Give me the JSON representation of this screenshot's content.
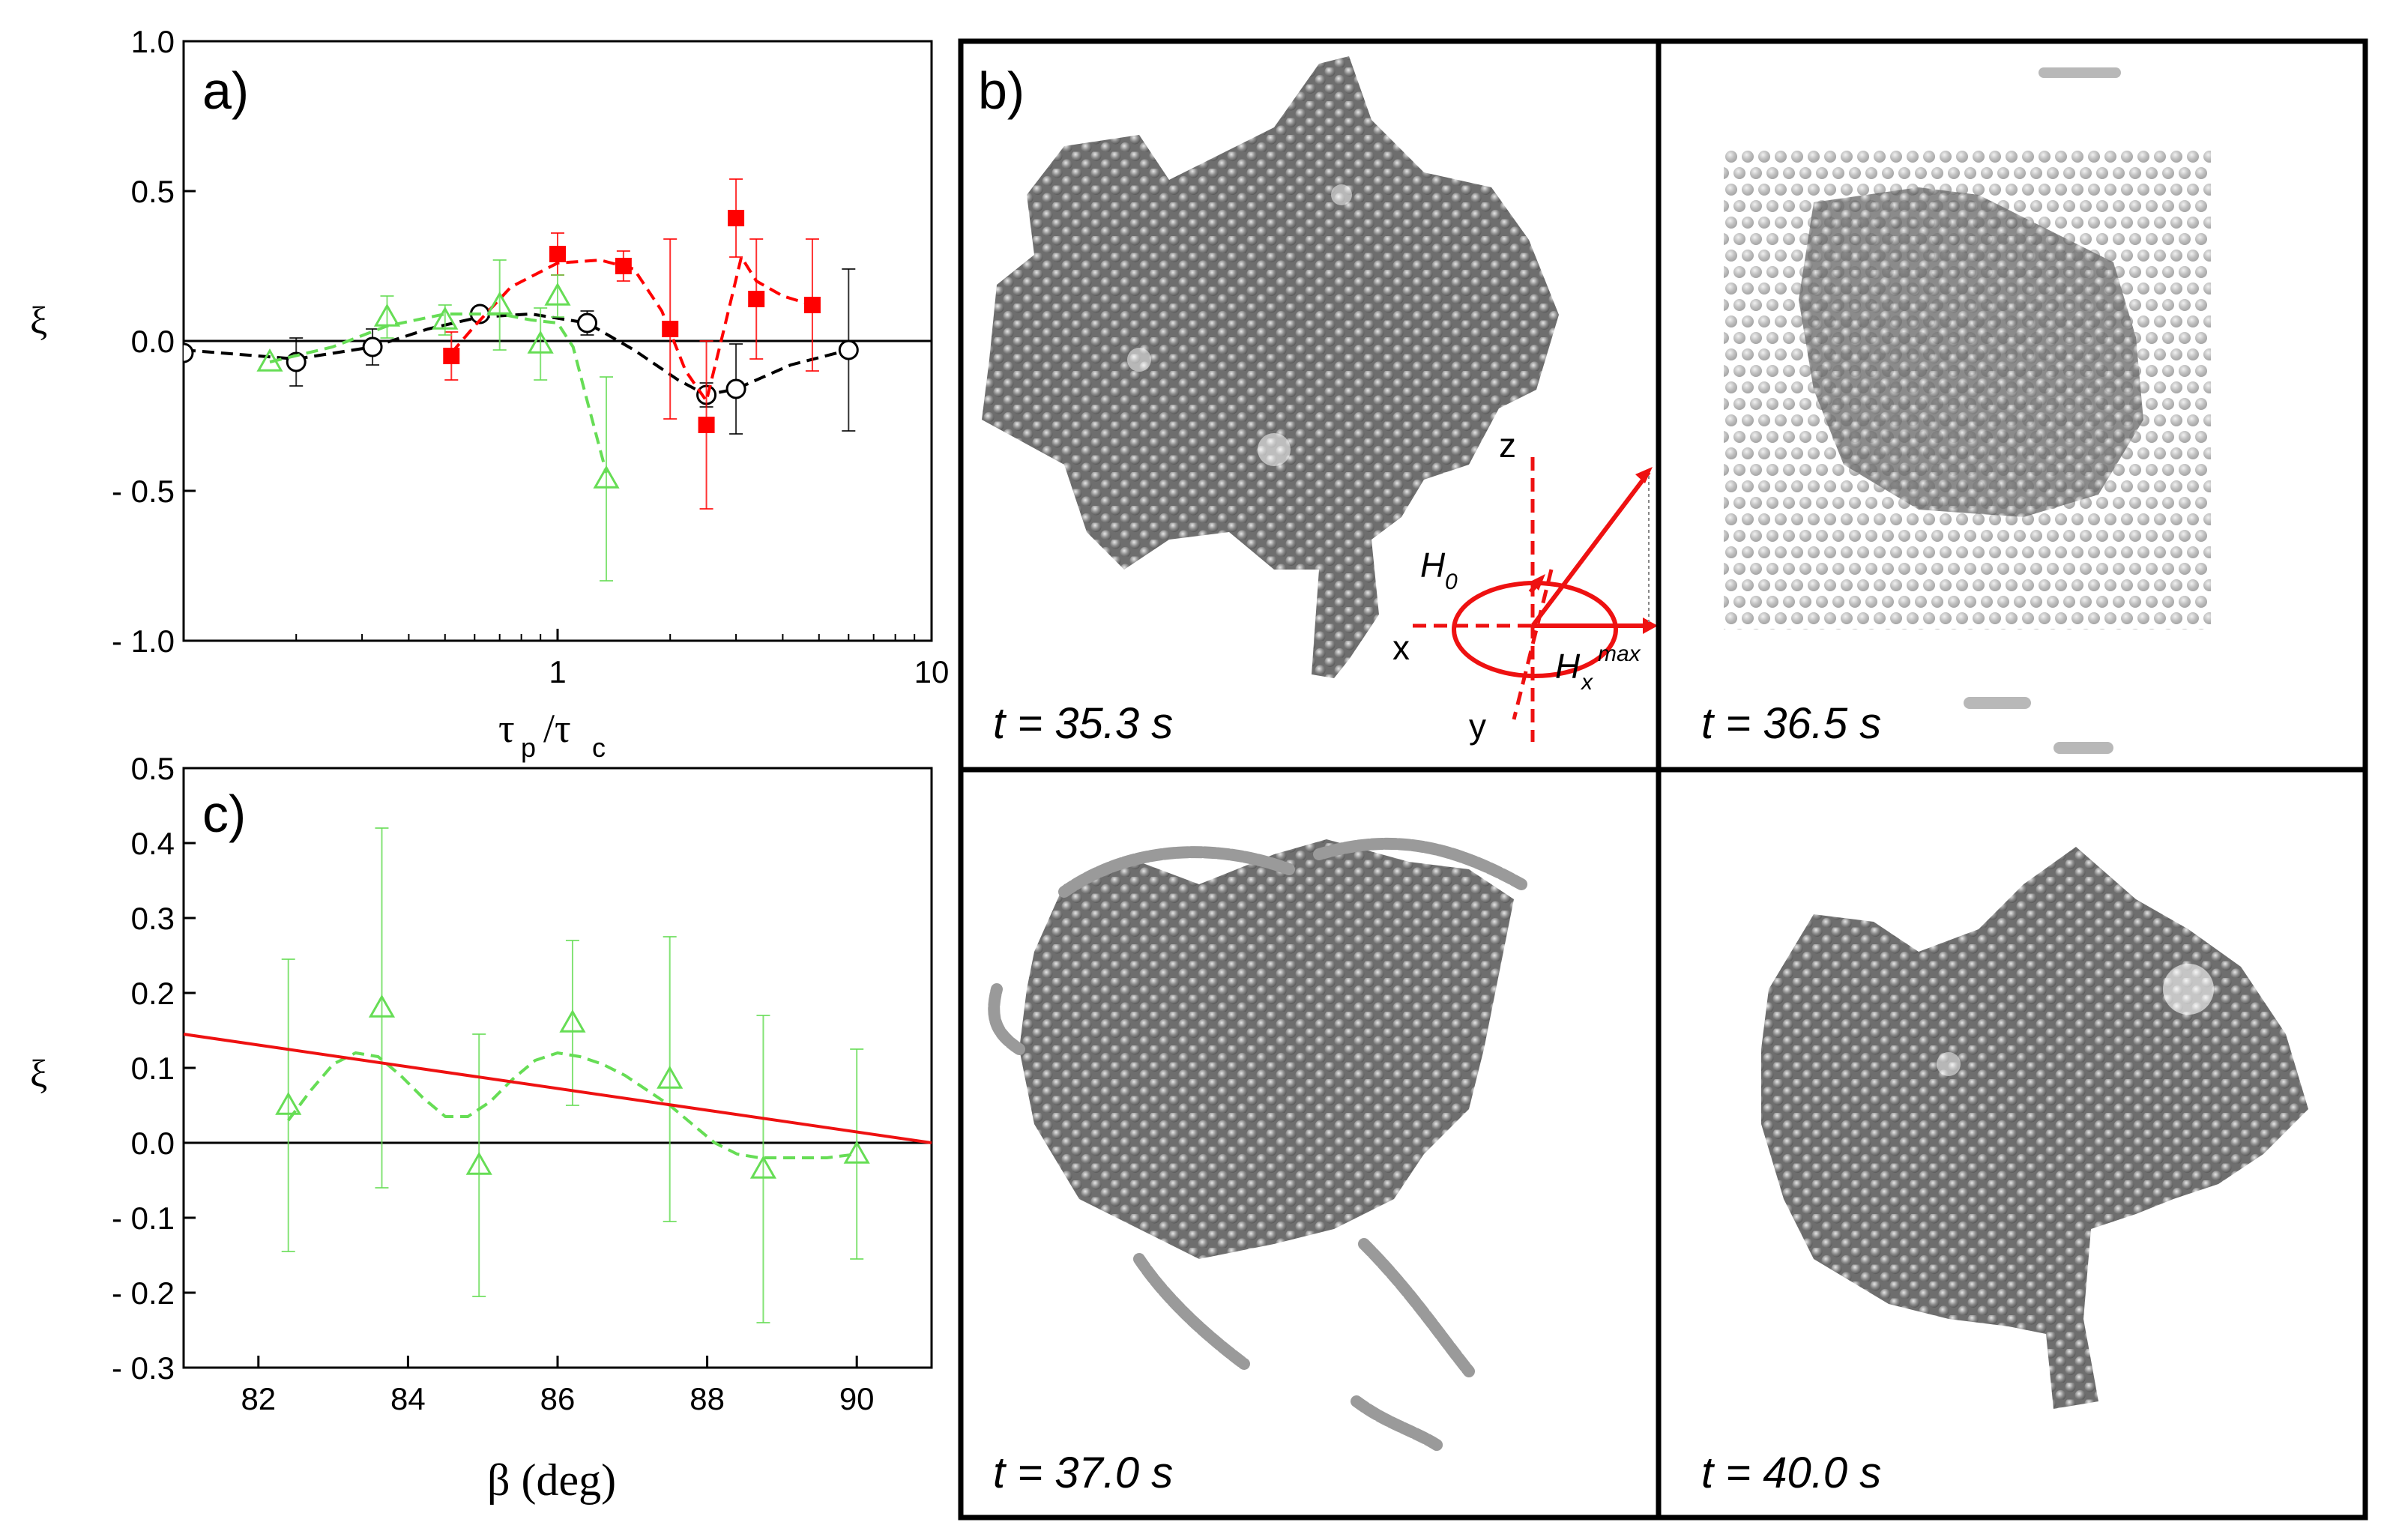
{
  "chart_data": [
    {
      "panel": "a)",
      "type": "scatter",
      "xscale": "log",
      "xlim": [
        0.1,
        10
      ],
      "ylim": [
        -1.0,
        1.0
      ],
      "xlabel": "τp /τc",
      "ylabel": "ξ",
      "yticks": [
        "1.0",
        "0.5",
        "0.0",
        "- 0.5",
        "- 1.0"
      ],
      "ytick_values": [
        1.0,
        0.5,
        0.0,
        -0.5,
        -1.0
      ],
      "xticks": [
        "1",
        "10"
      ],
      "xtick_values": [
        1,
        10
      ],
      "zero_line": true,
      "series": [
        {
          "name": "open circles",
          "marker": "circle-open",
          "color": "#000000",
          "line": "dashed",
          "x": [
            0.1,
            0.2,
            0.32,
            0.62,
            1.2,
            2.5,
            3.0,
            6.0
          ],
          "y": [
            -0.04,
            -0.07,
            -0.02,
            0.09,
            0.06,
            -0.18,
            -0.16,
            -0.03
          ],
          "err": [
            0.0,
            0.08,
            0.06,
            0.0,
            0.04,
            0.04,
            0.15,
            0.27
          ],
          "curve_x": [
            0.1,
            0.2,
            0.32,
            0.45,
            0.62,
            0.85,
            1.2,
            1.6,
            2.1,
            2.5,
            3.0,
            4.2,
            6.0
          ],
          "curve_y": [
            -0.03,
            -0.06,
            -0.02,
            0.04,
            0.08,
            0.09,
            0.06,
            -0.03,
            -0.13,
            -0.18,
            -0.16,
            -0.08,
            -0.03
          ]
        },
        {
          "name": "filled squares",
          "marker": "square-filled",
          "color": "#ff0000",
          "line": "dashed",
          "x": [
            0.52,
            1.0,
            1.5,
            2.0,
            2.5,
            3.0,
            3.4,
            4.8
          ],
          "y": [
            -0.05,
            0.29,
            0.25,
            0.04,
            -0.28,
            0.41,
            0.14,
            0.12
          ],
          "err": [
            0.08,
            0.07,
            0.05,
            0.3,
            0.28,
            0.13,
            0.2,
            0.22
          ],
          "curve_x": [
            0.52,
            0.6,
            0.75,
            1.0,
            1.3,
            1.6,
            1.9,
            2.2,
            2.5,
            2.8,
            3.1,
            3.4,
            4.0,
            4.8
          ],
          "curve_y": [
            -0.04,
            0.05,
            0.18,
            0.26,
            0.27,
            0.24,
            0.1,
            -0.1,
            -0.2,
            0.05,
            0.28,
            0.2,
            0.15,
            0.12
          ]
        },
        {
          "name": "open triangles",
          "marker": "triangle-open",
          "color": "#66dd55",
          "line": "dashed",
          "x": [
            0.17,
            0.35,
            0.5,
            0.7,
            0.9,
            1.0,
            1.35
          ],
          "y": [
            -0.07,
            0.08,
            0.07,
            0.12,
            -0.01,
            0.15,
            -0.46
          ],
          "err": [
            0.0,
            0.07,
            0.05,
            0.15,
            0.12,
            0.07,
            0.34
          ],
          "curve_x": [
            0.17,
            0.25,
            0.35,
            0.5,
            0.7,
            0.85,
            1.0,
            1.1,
            1.2,
            1.35
          ],
          "curve_y": [
            -0.07,
            -0.02,
            0.05,
            0.09,
            0.09,
            0.07,
            0.06,
            -0.02,
            -0.2,
            -0.44
          ]
        }
      ]
    },
    {
      "panel": "c)",
      "type": "scatter",
      "xlim": [
        81,
        91
      ],
      "ylim": [
        -0.3,
        0.5
      ],
      "xlabel": "β (deg)",
      "ylabel": "ξ",
      "yticks": [
        "0.5",
        "0.4",
        "0.3",
        "0.2",
        "0.1",
        "0.0",
        "- 0.1",
        "- 0.2",
        "- 0.3"
      ],
      "ytick_values": [
        0.5,
        0.4,
        0.3,
        0.2,
        0.1,
        0.0,
        -0.1,
        -0.2,
        -0.3
      ],
      "xticks": [
        "82",
        "84",
        "86",
        "88",
        "90"
      ],
      "xtick_values": [
        82,
        84,
        86,
        88,
        90
      ],
      "zero_line": true,
      "series": [
        {
          "name": "open triangles",
          "marker": "triangle-open",
          "color": "#66dd55",
          "line": "dashed",
          "x": [
            82.4,
            83.65,
            84.95,
            86.2,
            87.5,
            88.75,
            90.0
          ],
          "y": [
            0.05,
            0.18,
            -0.03,
            0.16,
            0.085,
            -0.035,
            -0.015
          ],
          "err": [
            0.195,
            0.24,
            0.175,
            0.11,
            0.19,
            0.205,
            0.14
          ],
          "curve_x": [
            82.4,
            82.7,
            83.0,
            83.3,
            83.6,
            83.9,
            84.2,
            84.5,
            84.8,
            85.1,
            85.4,
            85.7,
            86.0,
            86.3,
            86.6,
            86.9,
            87.2,
            87.5,
            87.8,
            88.1,
            88.4,
            88.7,
            89.0,
            89.3,
            89.6,
            90.0
          ],
          "curve_y": [
            0.03,
            0.07,
            0.105,
            0.12,
            0.115,
            0.09,
            0.06,
            0.035,
            0.035,
            0.055,
            0.085,
            0.11,
            0.12,
            0.115,
            0.105,
            0.09,
            0.07,
            0.05,
            0.025,
            0.0,
            -0.015,
            -0.02,
            -0.02,
            -0.02,
            -0.02,
            -0.015
          ]
        },
        {
          "name": "linear fit",
          "marker": "none",
          "color": "#ee1111",
          "line": "solid",
          "x": [
            81,
            91
          ],
          "y": [
            0.145,
            0.0
          ]
        }
      ]
    }
  ],
  "panel_b": {
    "label": "b)",
    "frames": [
      {
        "time": "t = 35.3 s"
      },
      {
        "time": "t = 36.5 s"
      },
      {
        "time": "t = 37.0 s"
      },
      {
        "time": "t = 40.0 s"
      }
    ],
    "axes_labels": {
      "z": "z",
      "x": "x",
      "y": "y",
      "h0": "H",
      "h0_sub": "0",
      "hx": "H",
      "hx_sub": "x",
      "hx_sup": "max"
    }
  },
  "colors": {
    "red": "#ee1111",
    "green": "#66dd55",
    "black": "#000000",
    "particle": "#8a8a8a"
  }
}
